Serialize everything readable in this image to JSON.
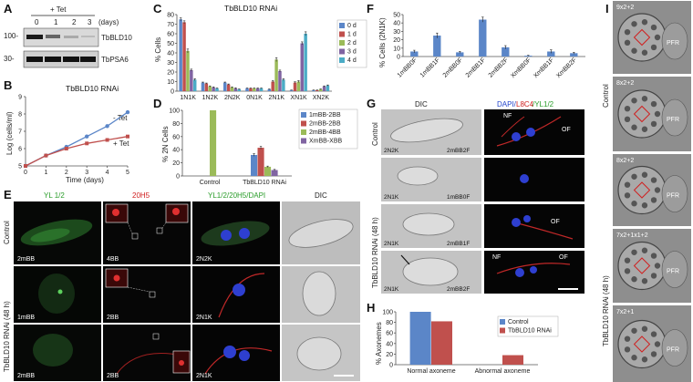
{
  "panels": {
    "a": "A",
    "b": "B",
    "c": "C",
    "d": "D",
    "e": "E",
    "f": "F",
    "g": "G",
    "h": "H",
    "i": "I"
  },
  "blot": {
    "tet_label": "+ Tet",
    "lanes": [
      "0",
      "1",
      "2",
      "3"
    ],
    "lane_unit": "(days)",
    "mw_top": "100-",
    "mw_bottom": "30-",
    "band_top": "TbBLD10",
    "band_bottom": "TbPSA6"
  },
  "growth": {
    "title": "TbBLD10 RNAi",
    "ylabel": "Log (cells/ml)",
    "xlabel": "Time (days)",
    "legend_minus": "- Tet",
    "legend_plus": "+ Tet",
    "yticks": [
      "5",
      "6",
      "7",
      "8",
      "9"
    ],
    "xticks": [
      "0",
      "1",
      "2",
      "3",
      "4",
      "5"
    ]
  },
  "panelC": {
    "title": "TbBLD10 RNAi",
    "ylabel": "% Cells",
    "yticks": [
      "0",
      "10",
      "20",
      "30",
      "40",
      "50",
      "60",
      "70",
      "80"
    ],
    "legend": [
      "0 d",
      "1 d",
      "2 d",
      "3 d",
      "4 d"
    ]
  },
  "panelD": {
    "ylabel": "% 2N Cells",
    "yticks": [
      "0",
      "20",
      "40",
      "60",
      "80",
      "100"
    ],
    "legend": [
      "1mBB-2BB",
      "2mBB-2BB",
      "2mBB-4BB",
      "XmBB-XBB"
    ]
  },
  "panelF": {
    "ylabel": "% Cells (2N1K)",
    "yticks": [
      "0",
      "10",
      "20",
      "30",
      "40",
      "50"
    ]
  },
  "panelH": {
    "ylabel": "% Axonemes",
    "yticks": [
      "0",
      "20",
      "40",
      "60",
      "80",
      "100"
    ],
    "legend": [
      "Control",
      "TbBLD10 RNAi"
    ]
  },
  "panelE": {
    "headers": [
      "YL 1/2",
      "20H5",
      "YL1/2/20H5/DAPI",
      "DIC"
    ],
    "row_control": "Control",
    "row_rnai": "TbBLD10 RNAi (48 h)",
    "labels": [
      "2mBB",
      "4BB",
      "2N2K",
      "1mBB",
      "2BB",
      "2N1K",
      "2mBB",
      "2BB",
      "2N1K"
    ]
  },
  "panelG": {
    "header_dic": "DIC",
    "header_dapi": "DAPI/",
    "header_l8c4": "L8C4",
    "header_yl": "/YL1/2",
    "row_control": "Control",
    "row_rnai": "TbBLD10 RNAi (48 h)",
    "labels": [
      "2N2K",
      "2mBB2F",
      "2N1K",
      "1mBB0F",
      "2N1K",
      "2mBB1F",
      "2N1K",
      "2mBB2F"
    ],
    "nf": "NF",
    "of": "OF"
  },
  "panelI": {
    "side_control": "Control",
    "side_rnai": "TbBLD10 RNAi (48 h)",
    "labels": [
      "9x2+2",
      "8x2+2",
      "8x2+2",
      "7x2+1x1+2",
      "7x2+1"
    ],
    "pfr": "PFR"
  },
  "chart_data": [
    {
      "type": "line",
      "title": "TbBLD10 RNAi",
      "xlabel": "Time (days)",
      "ylabel": "Log (cells/ml)",
      "x": [
        0,
        1,
        2,
        3,
        4,
        5
      ],
      "ylim": [
        5,
        9
      ],
      "series": [
        {
          "name": "- Tet",
          "values": [
            5.0,
            5.6,
            6.1,
            6.7,
            7.3,
            8.1
          ],
          "color": "#5b86c8"
        },
        {
          "name": "+ Tet",
          "values": [
            5.0,
            5.6,
            6.0,
            6.3,
            6.5,
            6.7
          ],
          "color": "#c0504d"
        }
      ]
    },
    {
      "type": "bar",
      "title": "TbBLD10 RNAi",
      "ylabel": "% Cells",
      "ylim": [
        0,
        80
      ],
      "categories": [
        "1N1K",
        "1N2K",
        "2N2K",
        "0N1K",
        "2N1K",
        "XN1K",
        "XN2K"
      ],
      "series": [
        {
          "name": "0 d",
          "values": [
            75,
            9,
            9,
            3,
            2,
            1,
            1
          ],
          "errors": [
            1.5,
            0.5,
            0.5,
            0.3,
            0.3,
            0.2,
            0.2
          ],
          "color": "#5b86c8"
        },
        {
          "name": "1 d",
          "values": [
            72,
            8,
            7,
            3,
            10,
            9,
            1
          ],
          "errors": [
            1.5,
            0.5,
            0.5,
            0.3,
            1,
            0.8,
            0.2
          ],
          "color": "#c0504d"
        },
        {
          "name": "2 d",
          "values": [
            42,
            5,
            4,
            3,
            33,
            10,
            2
          ],
          "errors": [
            2,
            0.5,
            0.5,
            0.3,
            2,
            1,
            0.3
          ],
          "color": "#9bbb59"
        },
        {
          "name": "3 d",
          "values": [
            22,
            4,
            3,
            3,
            21,
            50,
            5
          ],
          "errors": [
            1,
            0.5,
            0.5,
            0.3,
            1,
            1.5,
            0.5
          ],
          "color": "#8064a2"
        },
        {
          "name": "4 d",
          "values": [
            12,
            3,
            2,
            3,
            12,
            60,
            6
          ],
          "errors": [
            1,
            0.3,
            0.3,
            0.3,
            1,
            2,
            0.5
          ],
          "color": "#4bacc6"
        }
      ]
    },
    {
      "type": "bar",
      "ylabel": "% 2N Cells",
      "ylim": [
        0,
        100
      ],
      "categories": [
        "Control",
        "TbBLD10 RNAi"
      ],
      "series": [
        {
          "name": "1mBB-2BB",
          "values": [
            0,
            32
          ],
          "errors": [
            0,
            2
          ],
          "color": "#5b86c8"
        },
        {
          "name": "2mBB-2BB",
          "values": [
            0,
            43
          ],
          "errors": [
            0,
            2
          ],
          "color": "#c0504d"
        },
        {
          "name": "2mBB-4BB",
          "values": [
            100,
            14
          ],
          "errors": [
            0,
            1
          ],
          "color": "#9bbb59"
        },
        {
          "name": "XmBB-XBB",
          "values": [
            0,
            9
          ],
          "errors": [
            0,
            1
          ],
          "color": "#8064a2"
        }
      ]
    },
    {
      "type": "bar",
      "ylabel": "% Cells (2N1K)",
      "ylim": [
        0,
        50
      ],
      "categories": [
        "1mBB0F",
        "1mBB1F",
        "2mBB0F",
        "2mBB1F",
        "2mBB2F",
        "XmBB0F",
        "XmBB1F",
        "XmBB2F"
      ],
      "series": [
        {
          "values": [
            6,
            25,
            5,
            44,
            11,
            1,
            6,
            4
          ],
          "errors": [
            1.5,
            3,
            1,
            3,
            2,
            0.5,
            2,
            1
          ],
          "color": "#5b86c8"
        }
      ]
    },
    {
      "type": "bar",
      "ylabel": "% Axonemes",
      "ylim": [
        0,
        100
      ],
      "categories": [
        "Normal axoneme",
        "Abnormal axoneme"
      ],
      "series": [
        {
          "name": "Control",
          "values": [
            100,
            0
          ],
          "color": "#5b86c8"
        },
        {
          "name": "TbBLD10 RNAi",
          "values": [
            82,
            18
          ],
          "color": "#c0504d"
        }
      ]
    }
  ]
}
